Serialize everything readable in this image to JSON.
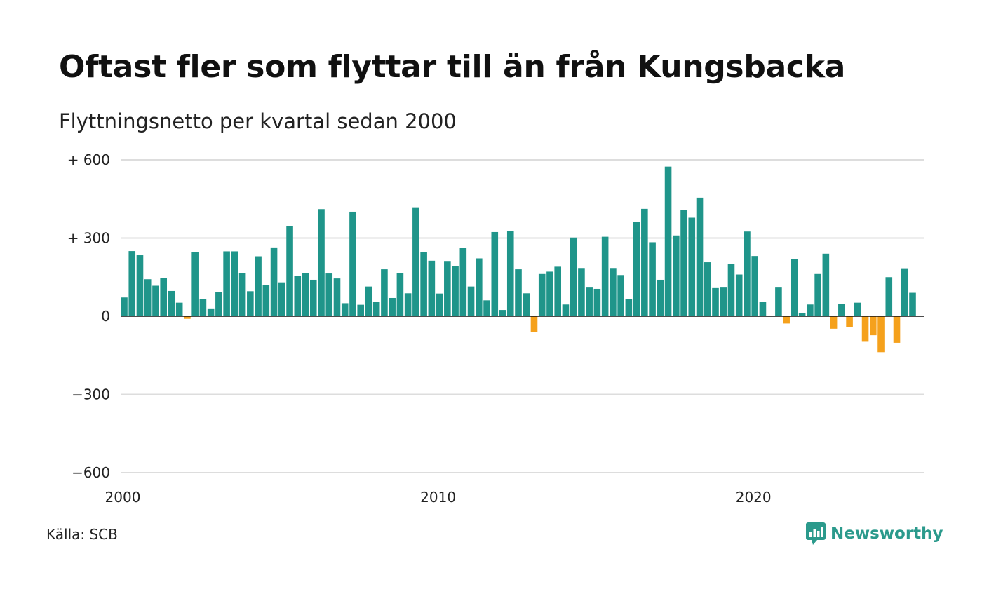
{
  "title": "Oftast fler som flyttar till än från Kungsbacka",
  "subtitle": "Flyttningsnetto per kvartal sedan 2000",
  "source": "Källa: SCB",
  "logo": {
    "text": "Newsworthy",
    "icon": "newsworthy-chart-bubble-icon"
  },
  "colors": {
    "positive": "#1f958a",
    "negative": "#f5a11c",
    "grid": "#dddddd",
    "zero": "#111111"
  },
  "chart_data": {
    "type": "bar",
    "x_start": "2000 Q1",
    "ylim": [
      -600,
      600
    ],
    "yticks": [
      {
        "value": 600,
        "label": "+ 600"
      },
      {
        "value": 300,
        "label": "+ 300"
      },
      {
        "value": 0,
        "label": "0"
      },
      {
        "value": -300,
        "label": "−300"
      },
      {
        "value": -600,
        "label": "−600"
      }
    ],
    "xticks": [
      {
        "index": 0,
        "label": "2000"
      },
      {
        "index": 40,
        "label": "2010"
      },
      {
        "index": 80,
        "label": "2020"
      }
    ],
    "values": [
      72,
      250,
      234,
      142,
      117,
      146,
      97,
      52,
      -10,
      247,
      66,
      30,
      92,
      249,
      249,
      166,
      96,
      230,
      120,
      264,
      130,
      345,
      154,
      165,
      140,
      411,
      164,
      145,
      50,
      401,
      44,
      114,
      56,
      180,
      70,
      166,
      88,
      418,
      245,
      213,
      87,
      212,
      191,
      261,
      114,
      222,
      61,
      323,
      24,
      326,
      180,
      88,
      -60,
      162,
      171,
      190,
      45,
      302,
      185,
      110,
      105,
      305,
      185,
      158,
      65,
      362,
      412,
      284,
      140,
      574,
      310,
      408,
      378,
      455,
      207,
      108,
      110,
      200,
      160,
      325,
      231,
      55,
      2,
      110,
      -28,
      218,
      12,
      45,
      162,
      240,
      -48,
      48,
      -43,
      52,
      -98,
      -73,
      -138,
      150,
      -102,
      184,
      90
    ]
  }
}
